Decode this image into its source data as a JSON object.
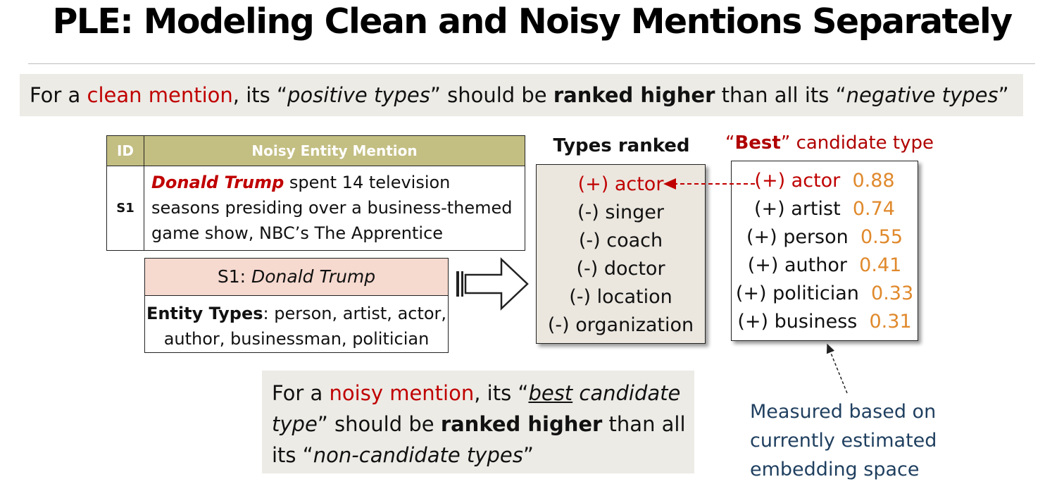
{
  "title": "PLE: Modeling Clean and Noisy Mentions Separately",
  "clean_banner": {
    "prefix": "For a ",
    "highlight": "clean mention",
    "mid1": ", its “",
    "positive": "positive types",
    "mid2": "” should be ",
    "ranked": "ranked higher",
    "mid3": " than all its “",
    "negative": "negative types",
    "suffix": "”"
  },
  "mention_table": {
    "col_id": "ID",
    "col_mention": "Noisy Entity Mention",
    "row": {
      "id": "S1",
      "entity": "Donald Trump",
      "text": " spent 14 television seasons presiding over a business-themed game show, NBC’s The Apprentice"
    }
  },
  "s1_card": {
    "head_prefix": "S1: ",
    "head_name": "Donald Trump",
    "types_label": "Entity Types",
    "types_value": ": person, artist, actor, author, businessman, politician"
  },
  "types_ranked": {
    "title": "Types ranked",
    "items": [
      "(+) actor",
      "(-) singer",
      "(-) coach",
      "(-) doctor",
      "(-) location",
      "(-) organization"
    ]
  },
  "best_candidate": {
    "title_open": "“",
    "title_best": "Best",
    "title_rest": "” candidate type",
    "items": [
      {
        "label": "(+) actor",
        "score": "0.88"
      },
      {
        "label": "(+) artist",
        "score": "0.74"
      },
      {
        "label": "(+) person",
        "score": "0.55"
      },
      {
        "label": "(+) author",
        "score": "0.41"
      },
      {
        "label": "(+) politician",
        "score": "0.33"
      },
      {
        "label": "(+) business",
        "score": "0.31"
      }
    ]
  },
  "noisy_banner": {
    "prefix": "For a ",
    "highlight": "noisy mention",
    "mid1": ", its “",
    "best": "best",
    "candidate_type": " candidate type",
    "mid2": "” should be ",
    "ranked": "ranked higher",
    "mid3": " than all its “",
    "noncand": "non-candidate types",
    "suffix": "”"
  },
  "measured_note": [
    "Measured based on",
    "currently estimated",
    "embedding space"
  ],
  "colors": {
    "accent_red": "#c00000",
    "score_orange": "#e0892c",
    "header_olive": "#c3be82",
    "note_blue": "#1f3f5f",
    "banner_grey": "#ecebe6"
  }
}
